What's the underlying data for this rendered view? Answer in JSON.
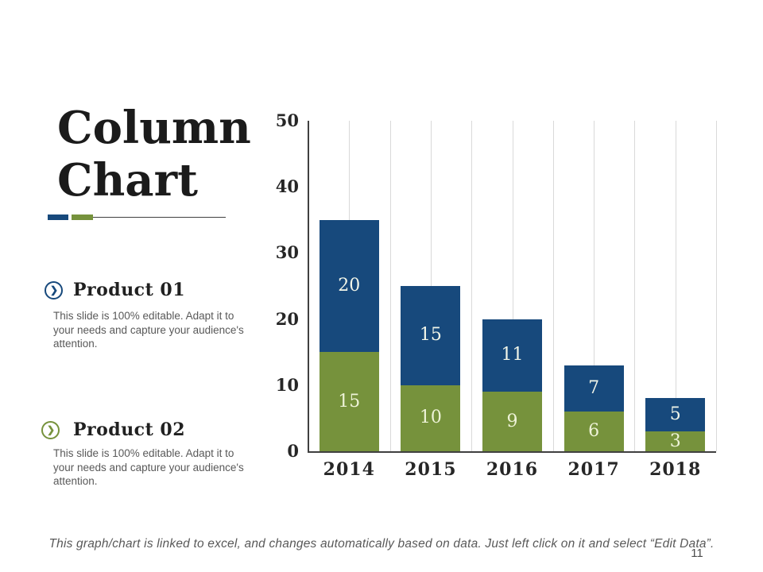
{
  "slide": {
    "title_lines": [
      "Column",
      "Chart"
    ],
    "footnote": "This graph/chart is linked to excel, and changes automatically based on data. Just left click on it and select “Edit Data”.",
    "page_number": "11"
  },
  "products": [
    {
      "name": "Product 01",
      "icon": "chevron-right-circle",
      "color": "#17497c",
      "description": "This slide is 100% editable. Adapt it to your needs and capture your audience's attention."
    },
    {
      "name": "Product 02",
      "icon": "chevron-right-circle",
      "color": "#76923c",
      "description": "This slide is 100% editable. Adapt it to your needs and capture your audience's attention."
    }
  ],
  "chart_data": {
    "type": "bar",
    "stacked": true,
    "categories": [
      "2014",
      "2015",
      "2016",
      "2017",
      "2018"
    ],
    "series": [
      {
        "name": "Product 02",
        "color": "#76923c",
        "label_color": "#eef3d8",
        "values": [
          15,
          10,
          9,
          6,
          3
        ]
      },
      {
        "name": "Product 01",
        "color": "#17497c",
        "label_color": "#f2f6e9",
        "values": [
          20,
          15,
          11,
          7,
          5
        ]
      }
    ],
    "totals": [
      35,
      25,
      20,
      13,
      8
    ],
    "ylim": [
      0,
      50
    ],
    "yticks": [
      0,
      10,
      20,
      30,
      40,
      50
    ],
    "grid": "vertical, two per category",
    "legend_position": "none",
    "title": "",
    "xlabel": "",
    "ylabel": ""
  },
  "colors": {
    "accent_blue": "#17497c",
    "accent_green": "#76923c",
    "gridline": "#d9d9d9",
    "axis_line": "#404040",
    "text_gray": "#595959"
  }
}
